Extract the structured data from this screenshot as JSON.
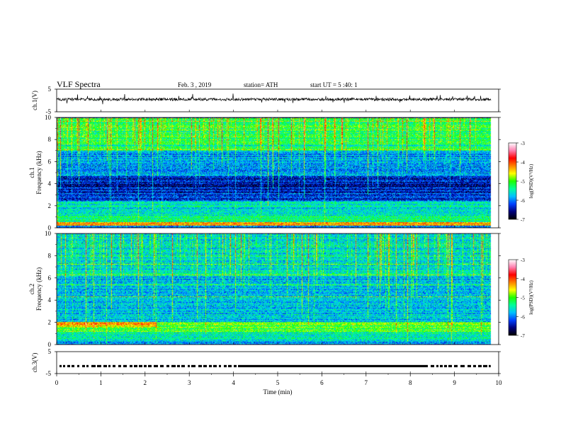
{
  "header": {
    "title": "VLF  Spectra",
    "date": "Feb. 3  , 2019",
    "station": "station= ATH",
    "start": "start  UT  =   5  :40: 1"
  },
  "chart_data": {
    "type": "heatmap",
    "xlabel": "Time  (min)",
    "xlim": [
      0,
      10
    ],
    "xticks": [
      "0",
      "1",
      "2",
      "3",
      "4",
      "5",
      "6",
      "7",
      "8",
      "9",
      "10"
    ],
    "data_end_min": 9.82,
    "panels": [
      {
        "id": "ch1-waveform",
        "kind": "line",
        "ylabel": "ch.1(V)",
        "ylim": [
          -5,
          5
        ],
        "yticks": [
          "5",
          "-5"
        ],
        "baseline": 0.5,
        "amplitude": 0.6
      },
      {
        "id": "ch1-spectrogram",
        "kind": "spectrogram",
        "ylabel": "ch.1\nFrequency  (kHz)",
        "ylabel_lines": [
          "ch.1",
          "Frequency  (kHz)"
        ],
        "ylim": [
          0,
          10
        ],
        "yticks": [
          "0",
          "2",
          "4",
          "6",
          "8",
          "10"
        ],
        "seed": 7,
        "bands": [
          {
            "f0": 0.0,
            "f1": 0.25,
            "level": -6.0
          },
          {
            "f0": 0.25,
            "f1": 0.55,
            "level": -4.3
          },
          {
            "f0": 0.55,
            "f1": 1.1,
            "level": -5.3
          },
          {
            "f0": 1.1,
            "f1": 2.5,
            "level": -5.6
          },
          {
            "f0": 2.5,
            "f1": 4.8,
            "level": -6.4
          },
          {
            "f0": 4.8,
            "f1": 7.0,
            "level": -5.9
          },
          {
            "f0": 7.0,
            "f1": 10.0,
            "level": -5.2
          }
        ]
      },
      {
        "id": "ch2-spectrogram",
        "kind": "spectrogram",
        "ylabel": "ch.2\nFrequency  (kHz)",
        "ylabel_lines": [
          "ch.2",
          "Frequency  (kHz)"
        ],
        "ylim": [
          0,
          10
        ],
        "yticks": [
          "0",
          "2",
          "4",
          "6",
          "8",
          "10"
        ],
        "seed": 13,
        "bands": [
          {
            "f0": 0.0,
            "f1": 0.3,
            "level": -5.9
          },
          {
            "f0": 0.3,
            "f1": 1.2,
            "level": -5.5
          },
          {
            "f0": 1.2,
            "f1": 2.1,
            "level": -5.0
          },
          {
            "f0": 2.1,
            "f1": 4.0,
            "level": -5.7
          },
          {
            "f0": 4.0,
            "f1": 6.0,
            "level": -5.8
          },
          {
            "f0": 6.0,
            "f1": 10.0,
            "level": -5.6
          }
        ]
      },
      {
        "id": "ch3-waveform",
        "kind": "pulse",
        "ylabel": "ch.3(V)",
        "ylim": [
          -5,
          5
        ],
        "yticks": [
          "5",
          "-5"
        ],
        "level": -1.6
      }
    ],
    "colorbar": {
      "label": "log(PSD)(V²/Hz)",
      "range": [
        -7,
        -3
      ],
      "ticks": [
        "-3",
        "-4",
        "-5",
        "-6",
        "-7"
      ],
      "stops": [
        "#000000",
        "#00007a",
        "#0040ff",
        "#00c0ff",
        "#00ff9a",
        "#20ff00",
        "#ffff00",
        "#ff8000",
        "#ff0000",
        "#ff80b0",
        "#ffffff"
      ]
    }
  }
}
